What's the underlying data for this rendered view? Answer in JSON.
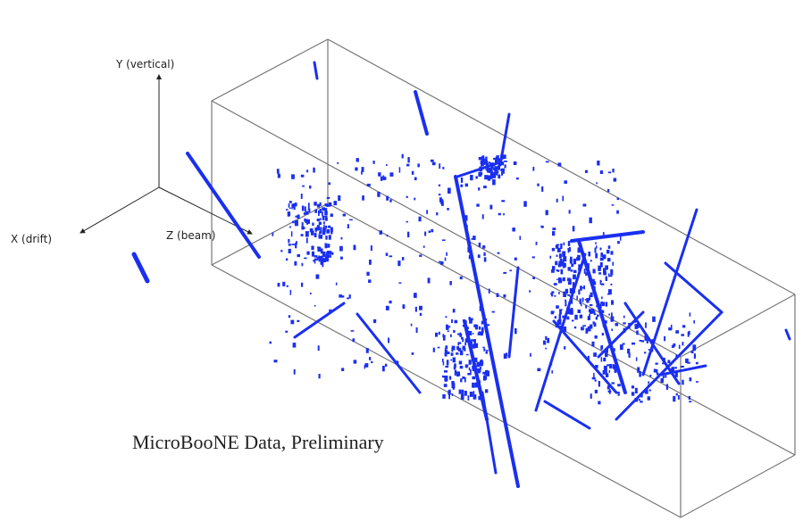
{
  "axes": {
    "y": "Y (vertical)",
    "x": "X (drift)",
    "z": "Z (beam)"
  },
  "caption": "MicroBooNE Data, Preliminary"
}
